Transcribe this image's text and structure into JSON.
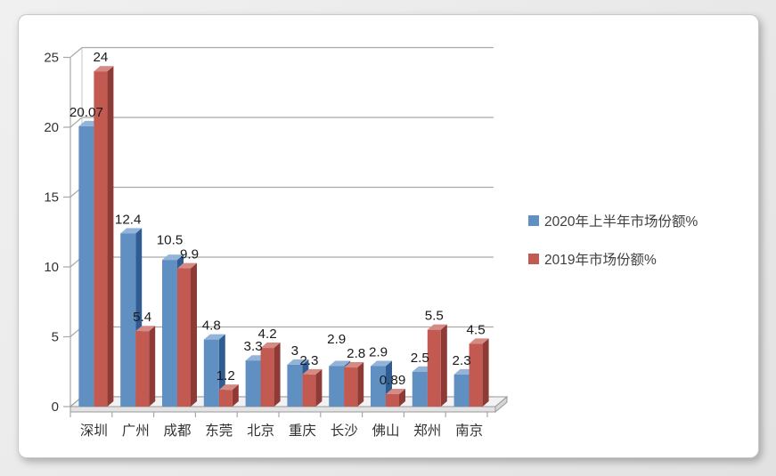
{
  "page": {
    "background_color": "#e9e9e9",
    "card_background": "#ffffff"
  },
  "chart_data": {
    "type": "bar",
    "style": "3d-clustered-column",
    "title": "",
    "xlabel": "",
    "ylabel": "",
    "categories": [
      "深圳",
      "广州",
      "成都",
      "东莞",
      "北京",
      "重庆",
      "长沙",
      "佛山",
      "郑州",
      "南京"
    ],
    "series": [
      {
        "name": "2020年上半年市场份额%",
        "color": "#6090c2",
        "color_top": "#93b4d8",
        "color_side": "#2f5d93",
        "values": [
          20.07,
          12.4,
          10.5,
          4.8,
          3.3,
          3,
          2.9,
          2.9,
          2.5,
          2.3
        ]
      },
      {
        "name": "2019年市场份额%",
        "color": "#c35a52",
        "color_top": "#d58b84",
        "color_side": "#8e3b37",
        "values": [
          24,
          5.4,
          9.9,
          1.2,
          4.2,
          2.3,
          2.8,
          0.89,
          5.5,
          4.5
        ]
      }
    ],
    "yticks": [
      0,
      5,
      10,
      15,
      20,
      25
    ],
    "ylim": [
      0,
      25
    ],
    "grid": true,
    "data_labels": true,
    "legend_position": "right",
    "gridline_color": "#a9a9a9",
    "axis_text_color": "#333333",
    "label_text_color": "#1a1a1a",
    "floor_color": "#f2f2f2",
    "floor_edge_color": "#999999"
  }
}
